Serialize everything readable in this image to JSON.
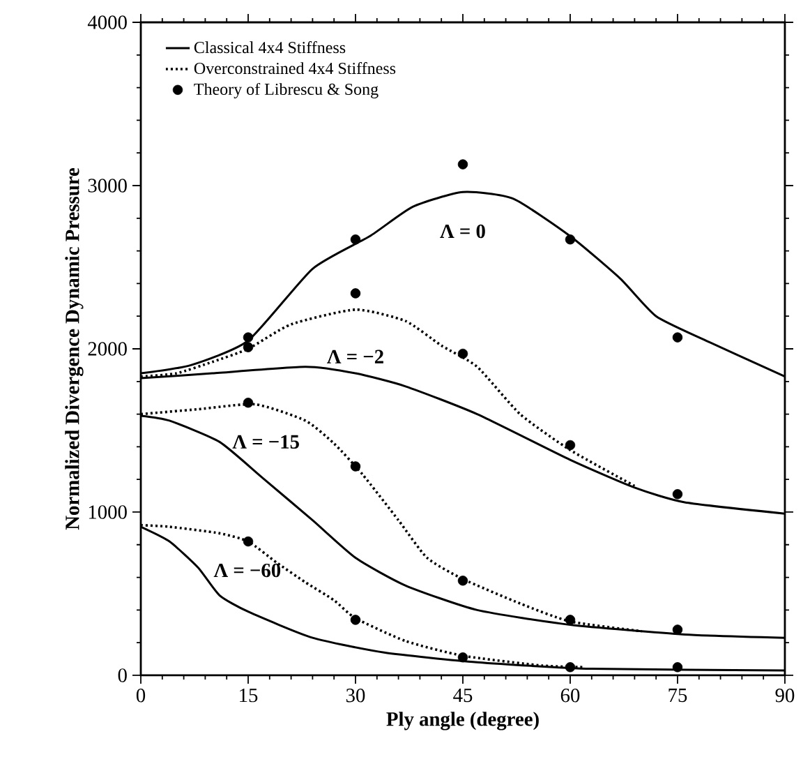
{
  "chart_data": {
    "type": "line",
    "xlabel": "Ply angle (degree)",
    "ylabel": "Normalized Divergence Dynamic Pressure",
    "xlim": [
      0,
      90
    ],
    "ylim": [
      0,
      4000
    ],
    "xticks": [
      0,
      15,
      30,
      45,
      60,
      75,
      90
    ],
    "yticks": [
      0,
      1000,
      2000,
      3000,
      4000
    ],
    "legend": "top left",
    "color": "#000000",
    "series": [
      {
        "name": "Classical 4x4 Stiffness",
        "line_style": "solid",
        "x": [
          0,
          7,
          15,
          24,
          32,
          38,
          45,
          52,
          60,
          67,
          72,
          79,
          90
        ],
        "values": [
          1850,
          1900,
          2050,
          2490,
          2690,
          2870,
          2960,
          2920,
          2690,
          2430,
          2200,
          2050,
          1830
        ]
      },
      {
        "name": "Overconstrained 4x4 Stiffness",
        "line_style": "dotted",
        "x": [
          0,
          5,
          10,
          15,
          21,
          30,
          37,
          42,
          47,
          53,
          60,
          69
        ],
        "values": [
          1830,
          1850,
          1920,
          2000,
          2150,
          2240,
          2170,
          2020,
          1890,
          1600,
          1380,
          1160
        ]
      },
      {
        "name": "Theory of Librescu & Song",
        "type": "scatter",
        "marker": "circle",
        "x": [
          15,
          30,
          45,
          60,
          75
        ],
        "values": [
          2070,
          2670,
          3130,
          2670,
          2070
        ]
      },
      {
        "line_style": "solid",
        "x": [
          0,
          10,
          23,
          30,
          37,
          47,
          60,
          69,
          76,
          90
        ],
        "values": [
          1820,
          1850,
          1890,
          1850,
          1770,
          1600,
          1320,
          1150,
          1060,
          990
        ]
      },
      {
        "type": "scatter",
        "marker": "circle",
        "x": [
          15,
          30,
          45,
          60,
          75
        ],
        "values": [
          2010,
          2340,
          1970,
          1410,
          1110
        ]
      },
      {
        "line_style": "solid",
        "x": [
          0,
          4,
          11,
          17,
          24,
          30,
          37,
          47,
          60,
          76,
          90
        ],
        "values": [
          1590,
          1560,
          1430,
          1210,
          950,
          720,
          550,
          400,
          310,
          250,
          230
        ]
      },
      {
        "line_style": "dotted",
        "x": [
          0,
          8,
          16,
          23,
          27,
          31,
          36,
          40,
          45,
          53,
          60,
          70
        ],
        "values": [
          1600,
          1630,
          1660,
          1560,
          1420,
          1230,
          950,
          720,
          590,
          440,
          330,
          270
        ]
      },
      {
        "type": "scatter",
        "marker": "circle",
        "x": [
          15,
          30,
          45,
          60,
          75
        ],
        "values": [
          1670,
          1280,
          580,
          340,
          280
        ]
      },
      {
        "line_style": "solid",
        "x": [
          0,
          4,
          8,
          11,
          15,
          24,
          34,
          47,
          63,
          90
        ],
        "values": [
          910,
          820,
          660,
          490,
          390,
          230,
          140,
          80,
          40,
          30
        ]
      },
      {
        "line_style": "dotted",
        "x": [
          0,
          4,
          11,
          15,
          19,
          23,
          27,
          30,
          37,
          45,
          56,
          62
        ],
        "values": [
          920,
          910,
          870,
          820,
          690,
          570,
          460,
          350,
          210,
          120,
          60,
          50
        ]
      },
      {
        "type": "scatter",
        "marker": "circle",
        "x": [
          15,
          30,
          45,
          60,
          75
        ],
        "values": [
          820,
          340,
          110,
          50,
          50
        ]
      }
    ],
    "annotations": [
      {
        "text": "Λ = 0",
        "x": 45,
        "y": 2960
      },
      {
        "text": "Λ = −2",
        "x": 30,
        "y": 1850
      },
      {
        "text": "Λ = −15",
        "x": 11,
        "y": 1430
      },
      {
        "text": "Λ = −60",
        "x": 8,
        "y": 660
      }
    ]
  }
}
